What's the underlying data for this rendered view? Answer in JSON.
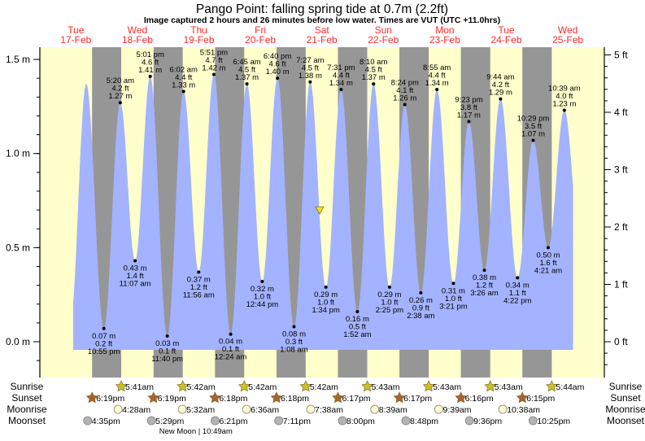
{
  "chart_data": {
    "type": "area",
    "title": "Pango Point: falling  spring tide at 0.7m (2.2ft)",
    "subtitle": "Image captured 2 hours and 26 minutes before low water. Times are VUT (UTC +11.0hrs)",
    "days": [
      {
        "dow": "Tue",
        "date": "17-Feb"
      },
      {
        "dow": "Wed",
        "date": "18-Feb"
      },
      {
        "dow": "Thu",
        "date": "19-Feb"
      },
      {
        "dow": "Fri",
        "date": "20-Feb"
      },
      {
        "dow": "Sat",
        "date": "21-Feb"
      },
      {
        "dow": "Sun",
        "date": "22-Feb"
      },
      {
        "dow": "Mon",
        "date": "23-Feb"
      },
      {
        "dow": "Tue",
        "date": "24-Feb"
      },
      {
        "dow": "Wed",
        "date": "25-Feb"
      }
    ],
    "y_left": {
      "unit": "m",
      "range": [
        -0.15,
        1.6
      ],
      "ticks": [
        "0.0 m",
        "0.5 m",
        "1.0 m",
        "1.5 m"
      ],
      "tick_values": [
        0,
        0.5,
        1.0,
        1.5
      ]
    },
    "y_right": {
      "unit": "ft",
      "ticks": [
        "0 ft",
        "1 ft",
        "2 ft",
        "3 ft",
        "4 ft",
        "5 ft"
      ],
      "tick_values": [
        0,
        1,
        2,
        3,
        4,
        5
      ]
    },
    "current": {
      "date": "21-Feb",
      "time": "11:08 am",
      "height_m": 0.7,
      "state": "falling"
    },
    "extremes": [
      {
        "type": "high",
        "date": "17-Feb",
        "time": "4:02 pm",
        "m": 1.37,
        "labeled": false
      },
      {
        "type": "low",
        "date": "17-Feb",
        "time": "10:55 pm",
        "m": "0.07 m",
        "ft": "0.2 ft",
        "value": 0.07
      },
      {
        "type": "high",
        "date": "18-Feb",
        "time": "5:20 am",
        "m": "1.27 m",
        "ft": "4.2 ft",
        "value": 1.27
      },
      {
        "type": "low",
        "date": "18-Feb",
        "time": "11:07 am",
        "m": "0.43 m",
        "ft": "1.4 ft",
        "value": 0.43
      },
      {
        "type": "high",
        "date": "18-Feb",
        "time": "5:01 pm",
        "m": "1.41 m",
        "ft": "4.6 ft",
        "value": 1.41
      },
      {
        "type": "low",
        "date": "18-Feb",
        "time": "11:40 pm",
        "m": "0.03 m",
        "ft": "0.1 ft",
        "value": 0.03
      },
      {
        "type": "high",
        "date": "19-Feb",
        "time": "6:02 am",
        "m": "1.33 m",
        "ft": "4.4 ft",
        "value": 1.33
      },
      {
        "type": "low",
        "date": "19-Feb",
        "time": "11:56 am",
        "m": "0.37 m",
        "ft": "1.2 ft",
        "value": 0.37
      },
      {
        "type": "high",
        "date": "19-Feb",
        "time": "5:51 pm",
        "m": "1.42 m",
        "ft": "4.7 ft",
        "value": 1.42
      },
      {
        "type": "low",
        "date": "20-Feb",
        "time": "12:24 am",
        "m": "0.04 m",
        "ft": "0.1 ft",
        "value": 0.04
      },
      {
        "type": "high",
        "date": "20-Feb",
        "time": "6:45 am",
        "m": "1.37 m",
        "ft": "4.5 ft",
        "value": 1.37
      },
      {
        "type": "low",
        "date": "20-Feb",
        "time": "12:44 pm",
        "m": "0.32 m",
        "ft": "1.0 ft",
        "value": 0.32
      },
      {
        "type": "high",
        "date": "20-Feb",
        "time": "6:40 pm",
        "m": "1.40 m",
        "ft": "4.6 ft",
        "value": 1.4
      },
      {
        "type": "low",
        "date": "21-Feb",
        "time": "1:08 am",
        "m": "0.08 m",
        "ft": "0.3 ft",
        "value": 0.08
      },
      {
        "type": "high",
        "date": "21-Feb",
        "time": "7:27 am",
        "m": "1.38 m",
        "ft": "4.5 ft",
        "value": 1.38
      },
      {
        "type": "low",
        "date": "21-Feb",
        "time": "1:34 pm",
        "m": "0.29 m",
        "ft": "1.0 ft",
        "value": 0.29
      },
      {
        "type": "high",
        "date": "21-Feb",
        "time": "7:31 pm",
        "m": "1.34 m",
        "ft": "4.4 ft",
        "value": 1.34
      },
      {
        "type": "low",
        "date": "22-Feb",
        "time": "1:52 am",
        "m": "0.16 m",
        "ft": "0.5 ft",
        "value": 0.16
      },
      {
        "type": "high",
        "date": "22-Feb",
        "time": "8:10 am",
        "m": "1.37 m",
        "ft": "4.5 ft",
        "value": 1.37
      },
      {
        "type": "low",
        "date": "22-Feb",
        "time": "2:25 pm",
        "m": "0.29 m",
        "ft": "1.0 ft",
        "value": 0.29
      },
      {
        "type": "high",
        "date": "22-Feb",
        "time": "8:24 pm",
        "m": "1.26 m",
        "ft": "4.1 ft",
        "value": 1.26
      },
      {
        "type": "low",
        "date": "23-Feb",
        "time": "2:38 am",
        "m": "0.26 m",
        "ft": "0.9 ft",
        "value": 0.26
      },
      {
        "type": "high",
        "date": "23-Feb",
        "time": "8:55 am",
        "m": "1.34 m",
        "ft": "4.4 ft",
        "value": 1.34
      },
      {
        "type": "low",
        "date": "23-Feb",
        "time": "3:21 pm",
        "m": "0.31 m",
        "ft": "1.0 ft",
        "value": 0.31
      },
      {
        "type": "high",
        "date": "23-Feb",
        "time": "9:23 pm",
        "m": "1.17 m",
        "ft": "3.8 ft",
        "value": 1.17
      },
      {
        "type": "low",
        "date": "24-Feb",
        "time": "3:26 am",
        "m": "0.38 m",
        "ft": "1.2 ft",
        "value": 0.38
      },
      {
        "type": "high",
        "date": "24-Feb",
        "time": "9:44 am",
        "m": "1.29 m",
        "ft": "4.2 ft",
        "value": 1.29
      },
      {
        "type": "low",
        "date": "24-Feb",
        "time": "4:22 pm",
        "m": "0.34 m",
        "ft": "1.1 ft",
        "value": 0.34
      },
      {
        "type": "high",
        "date": "24-Feb",
        "time": "10:29 pm",
        "m": "1.07 m",
        "ft": "3.5 ft",
        "value": 1.07
      },
      {
        "type": "low",
        "date": "25-Feb",
        "time": "4:21 am",
        "m": "0.50 m",
        "ft": "1.6 ft",
        "value": 0.5
      },
      {
        "type": "high",
        "date": "25-Feb",
        "time": "10:39 am",
        "m": "1.23 m",
        "ft": "4.0 ft",
        "value": 1.23
      }
    ],
    "rows": {
      "sunrise": {
        "label": "Sunrise",
        "events": [
          {
            "date": "18-Feb",
            "time": "5:41am"
          },
          {
            "date": "19-Feb",
            "time": "5:42am"
          },
          {
            "date": "20-Feb",
            "time": "5:42am"
          },
          {
            "date": "21-Feb",
            "time": "5:42am"
          },
          {
            "date": "22-Feb",
            "time": "5:43am"
          },
          {
            "date": "23-Feb",
            "time": "5:43am"
          },
          {
            "date": "24-Feb",
            "time": "5:43am"
          },
          {
            "date": "25-Feb",
            "time": "5:44am"
          }
        ]
      },
      "sunset": {
        "label": "Sunset",
        "events": [
          {
            "date": "17-Feb",
            "time": "6:19pm"
          },
          {
            "date": "18-Feb",
            "time": "6:19pm"
          },
          {
            "date": "19-Feb",
            "time": "6:18pm"
          },
          {
            "date": "20-Feb",
            "time": "6:18pm"
          },
          {
            "date": "21-Feb",
            "time": "6:17pm"
          },
          {
            "date": "22-Feb",
            "time": "6:17pm"
          },
          {
            "date": "23-Feb",
            "time": "6:16pm"
          },
          {
            "date": "24-Feb",
            "time": "6:15pm"
          }
        ]
      },
      "moonrise": {
        "label": "Moonrise",
        "events": [
          {
            "date": "18-Feb",
            "time": "4:28am"
          },
          {
            "date": "19-Feb",
            "time": "5:32am"
          },
          {
            "date": "20-Feb",
            "time": "6:36am"
          },
          {
            "date": "21-Feb",
            "time": "7:38am"
          },
          {
            "date": "22-Feb",
            "time": "8:39am"
          },
          {
            "date": "23-Feb",
            "time": "9:39am"
          },
          {
            "date": "24-Feb",
            "time": "10:38am"
          }
        ]
      },
      "moonset": {
        "label": "Moonset",
        "events": [
          {
            "date": "17-Feb",
            "time": "4:35pm"
          },
          {
            "date": "18-Feb",
            "time": "5:29pm"
          },
          {
            "date": "19-Feb",
            "time": "6:21pm"
          },
          {
            "date": "20-Feb",
            "time": "7:11pm"
          },
          {
            "date": "21-Feb",
            "time": "8:00pm"
          },
          {
            "date": "22-Feb",
            "time": "8:48pm"
          },
          {
            "date": "23-Feb",
            "time": "9:36pm"
          },
          {
            "date": "24-Feb",
            "time": "10:25pm"
          }
        ]
      }
    },
    "moon_phase": {
      "label": "New Moon | 10:49am",
      "date": "19-Feb",
      "time": "10:49am"
    },
    "colors": {
      "day": "#ffffcc",
      "night": "#969696",
      "water": "#a3b3ff",
      "day_label": "#ff2a2a",
      "sunrise_icon": "#c8c02a",
      "sunset_icon": "#a8642c",
      "moonrise_icon": "#ffffcc",
      "moonset_icon": "#b4b4b4",
      "marker": "#f0e020"
    }
  }
}
